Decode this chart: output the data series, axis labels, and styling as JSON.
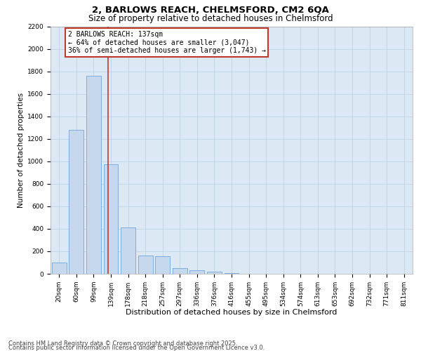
{
  "title1": "2, BARLOWS REACH, CHELMSFORD, CM2 6QA",
  "title2": "Size of property relative to detached houses in Chelmsford",
  "xlabel": "Distribution of detached houses by size in Chelmsford",
  "ylabel": "Number of detached properties",
  "bins": [
    "20sqm",
    "60sqm",
    "99sqm",
    "139sqm",
    "178sqm",
    "218sqm",
    "257sqm",
    "297sqm",
    "336sqm",
    "376sqm",
    "416sqm",
    "455sqm",
    "495sqm",
    "534sqm",
    "574sqm",
    "613sqm",
    "653sqm",
    "692sqm",
    "732sqm",
    "771sqm",
    "811sqm"
  ],
  "values": [
    100,
    1280,
    1760,
    975,
    410,
    160,
    155,
    50,
    30,
    20,
    5,
    2,
    1,
    1,
    0,
    0,
    0,
    0,
    0,
    0,
    0
  ],
  "bar_color": "#c5d8ed",
  "bar_edge_color": "#5b9bd5",
  "vline_x": 2.85,
  "vline_color": "#c0392b",
  "annotation_line1": "2 BARLOWS REACH: 137sqm",
  "annotation_line2": "← 64% of detached houses are smaller (3,047)",
  "annotation_line3": "36% of semi-detached houses are larger (1,743) →",
  "annotation_box_color": "#c0392b",
  "ylim": [
    0,
    2200
  ],
  "yticks": [
    0,
    200,
    400,
    600,
    800,
    1000,
    1200,
    1400,
    1600,
    1800,
    2000,
    2200
  ],
  "footer1": "Contains HM Land Registry data © Crown copyright and database right 2025.",
  "footer2": "Contains public sector information licensed under the Open Government Licence v3.0.",
  "bg_color": "#ffffff",
  "plot_bg_color": "#dce9f5",
  "grid_color": "#b8cfe0",
  "title1_fontsize": 9.5,
  "title2_fontsize": 8.5,
  "tick_fontsize": 6.5,
  "xlabel_fontsize": 8,
  "ylabel_fontsize": 7.5,
  "annotation_fontsize": 7,
  "footer_fontsize": 6
}
